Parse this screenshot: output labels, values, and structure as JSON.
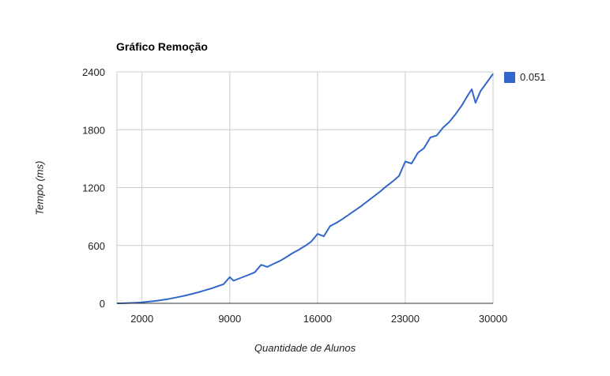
{
  "chart_data": {
    "type": "line",
    "title": "Gráfico Remoção",
    "xlabel": "Quantidade de Alunos",
    "ylabel": "Tempo (ms)",
    "xlim": [
      0,
      30000
    ],
    "ylim": [
      0,
      2400
    ],
    "x_ticks": [
      2000,
      9000,
      16000,
      23000,
      30000
    ],
    "y_ticks": [
      0,
      600,
      1200,
      1800,
      2400
    ],
    "grid": true,
    "legend_position": "right",
    "series": [
      {
        "name": "0.051",
        "color": "#3366cc",
        "x": [
          0,
          500,
          1000,
          1500,
          2000,
          2500,
          3000,
          3500,
          4000,
          4500,
          5000,
          5500,
          6000,
          6500,
          7000,
          7500,
          8000,
          8500,
          9000,
          9300,
          9600,
          10000,
          10500,
          11000,
          11500,
          12000,
          12500,
          13000,
          13500,
          14000,
          14500,
          15000,
          15500,
          16000,
          16500,
          17000,
          17500,
          18000,
          18500,
          19000,
          19500,
          20000,
          20500,
          21000,
          21500,
          22000,
          22500,
          23000,
          23500,
          24000,
          24500,
          25000,
          25500,
          26000,
          26500,
          27000,
          27500,
          28000,
          28300,
          28600,
          29000,
          29500,
          30000
        ],
        "y": [
          0,
          1,
          3,
          6,
          11,
          17,
          24,
          33,
          43,
          55,
          68,
          82,
          98,
          115,
          134,
          153,
          175,
          198,
          272,
          235,
          250,
          270,
          295,
          322,
          400,
          378,
          410,
          440,
          478,
          520,
          555,
          595,
          640,
          720,
          695,
          800,
          835,
          875,
          920,
          965,
          1010,
          1060,
          1110,
          1160,
          1215,
          1265,
          1320,
          1470,
          1450,
          1560,
          1610,
          1720,
          1740,
          1820,
          1880,
          1960,
          2050,
          2160,
          2220,
          2080,
          2200,
          2290,
          2380
        ]
      }
    ]
  }
}
